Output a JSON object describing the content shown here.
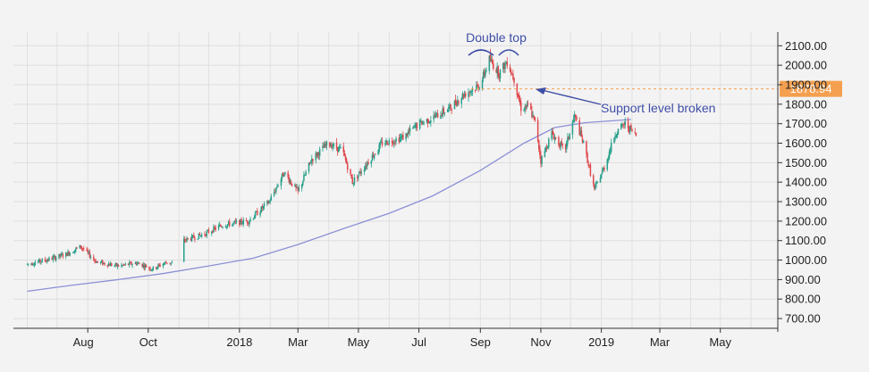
{
  "chart_data": {
    "type": "candlestick",
    "x_ticks": [
      "Aug",
      "Oct",
      "2018",
      "Mar",
      "May",
      "Jul",
      "Sep",
      "Nov",
      "2019",
      "Mar",
      "May"
    ],
    "y_ticks": [
      "2100.00",
      "2000.00",
      "1900.00",
      "1800.00",
      "1700.00",
      "1600.00",
      "1500.00",
      "1400.00",
      "1300.00",
      "1200.00",
      "1100.00",
      "1000.00",
      "900.00",
      "800.00",
      "700.00"
    ],
    "ylim": [
      650,
      2170
    ],
    "y_axis_position": "right",
    "grid": true,
    "current_price": {
      "label": "1878.94",
      "value": 1878.94
    },
    "annotations": [
      {
        "text": "Double top",
        "type": "arcs"
      },
      {
        "text": "Support level broken",
        "type": "arrow"
      }
    ],
    "moving_average": {
      "points": [
        {
          "date": "2017-06-01",
          "value": 840
        },
        {
          "date": "2017-07-15",
          "value": 870
        },
        {
          "date": "2017-09-01",
          "value": 900
        },
        {
          "date": "2017-10-15",
          "value": 930
        },
        {
          "date": "2017-12-01",
          "value": 970
        },
        {
          "date": "2018-01-15",
          "value": 1010
        },
        {
          "date": "2018-03-01",
          "value": 1080
        },
        {
          "date": "2018-04-15",
          "value": 1160
        },
        {
          "date": "2018-06-01",
          "value": 1240
        },
        {
          "date": "2018-07-15",
          "value": 1330
        },
        {
          "date": "2018-09-01",
          "value": 1460
        },
        {
          "date": "2018-10-15",
          "value": 1600
        },
        {
          "date": "2018-11-15",
          "value": 1680
        },
        {
          "date": "2018-12-15",
          "value": 1705
        },
        {
          "date": "2019-01-31",
          "value": 1722
        }
      ]
    },
    "price_path": [
      {
        "date": "2017-06-01",
        "value": 980
      },
      {
        "date": "2017-06-20",
        "value": 1000
      },
      {
        "date": "2017-07-10",
        "value": 1030
      },
      {
        "date": "2017-07-25",
        "value": 1070
      },
      {
        "date": "2017-08-10",
        "value": 990
      },
      {
        "date": "2017-09-01",
        "value": 970
      },
      {
        "date": "2017-09-20",
        "value": 985
      },
      {
        "date": "2017-10-05",
        "value": 955
      },
      {
        "date": "2017-10-20",
        "value": 990
      },
      {
        "date": "2017-11-01",
        "value": 975
      },
      {
        "date": "2017-11-05",
        "value": 1100
      },
      {
        "date": "2017-11-25",
        "value": 1130
      },
      {
        "date": "2017-12-15",
        "value": 1180
      },
      {
        "date": "2018-01-10",
        "value": 1200
      },
      {
        "date": "2018-01-31",
        "value": 1300
      },
      {
        "date": "2018-02-15",
        "value": 1450
      },
      {
        "date": "2018-03-01",
        "value": 1350
      },
      {
        "date": "2018-03-15",
        "value": 1520
      },
      {
        "date": "2018-04-01",
        "value": 1600
      },
      {
        "date": "2018-04-15",
        "value": 1560
      },
      {
        "date": "2018-04-25",
        "value": 1400
      },
      {
        "date": "2018-05-10",
        "value": 1500
      },
      {
        "date": "2018-05-25",
        "value": 1600
      },
      {
        "date": "2018-06-15",
        "value": 1630
      },
      {
        "date": "2018-07-01",
        "value": 1700
      },
      {
        "date": "2018-07-15",
        "value": 1730
      },
      {
        "date": "2018-08-01",
        "value": 1780
      },
      {
        "date": "2018-08-15",
        "value": 1850
      },
      {
        "date": "2018-09-01",
        "value": 1900
      },
      {
        "date": "2018-09-10",
        "value": 2030
      },
      {
        "date": "2018-09-20",
        "value": 1960
      },
      {
        "date": "2018-09-28",
        "value": 2020
      },
      {
        "date": "2018-10-05",
        "value": 1930
      },
      {
        "date": "2018-10-12",
        "value": 1780
      },
      {
        "date": "2018-10-20",
        "value": 1790
      },
      {
        "date": "2018-10-27",
        "value": 1690
      },
      {
        "date": "2018-11-01",
        "value": 1510
      },
      {
        "date": "2018-11-12",
        "value": 1650
      },
      {
        "date": "2018-11-25",
        "value": 1560
      },
      {
        "date": "2018-12-05",
        "value": 1740
      },
      {
        "date": "2018-12-15",
        "value": 1580
      },
      {
        "date": "2018-12-25",
        "value": 1360
      },
      {
        "date": "2019-01-05",
        "value": 1490
      },
      {
        "date": "2019-01-15",
        "value": 1650
      },
      {
        "date": "2019-01-25",
        "value": 1700
      },
      {
        "date": "2019-02-05",
        "value": 1640
      }
    ]
  }
}
